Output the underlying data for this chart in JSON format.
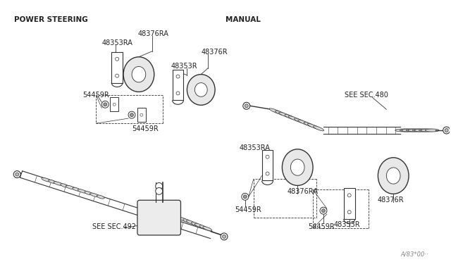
{
  "bg_color": "#ffffff",
  "fig_width": 6.4,
  "fig_height": 3.72,
  "line_color": "#333333",
  "text_color": "#222222",
  "left_label": "POWER STEERING",
  "right_label": "MANUAL",
  "bottom_label": "A/83*00··",
  "font_size": 7.0
}
